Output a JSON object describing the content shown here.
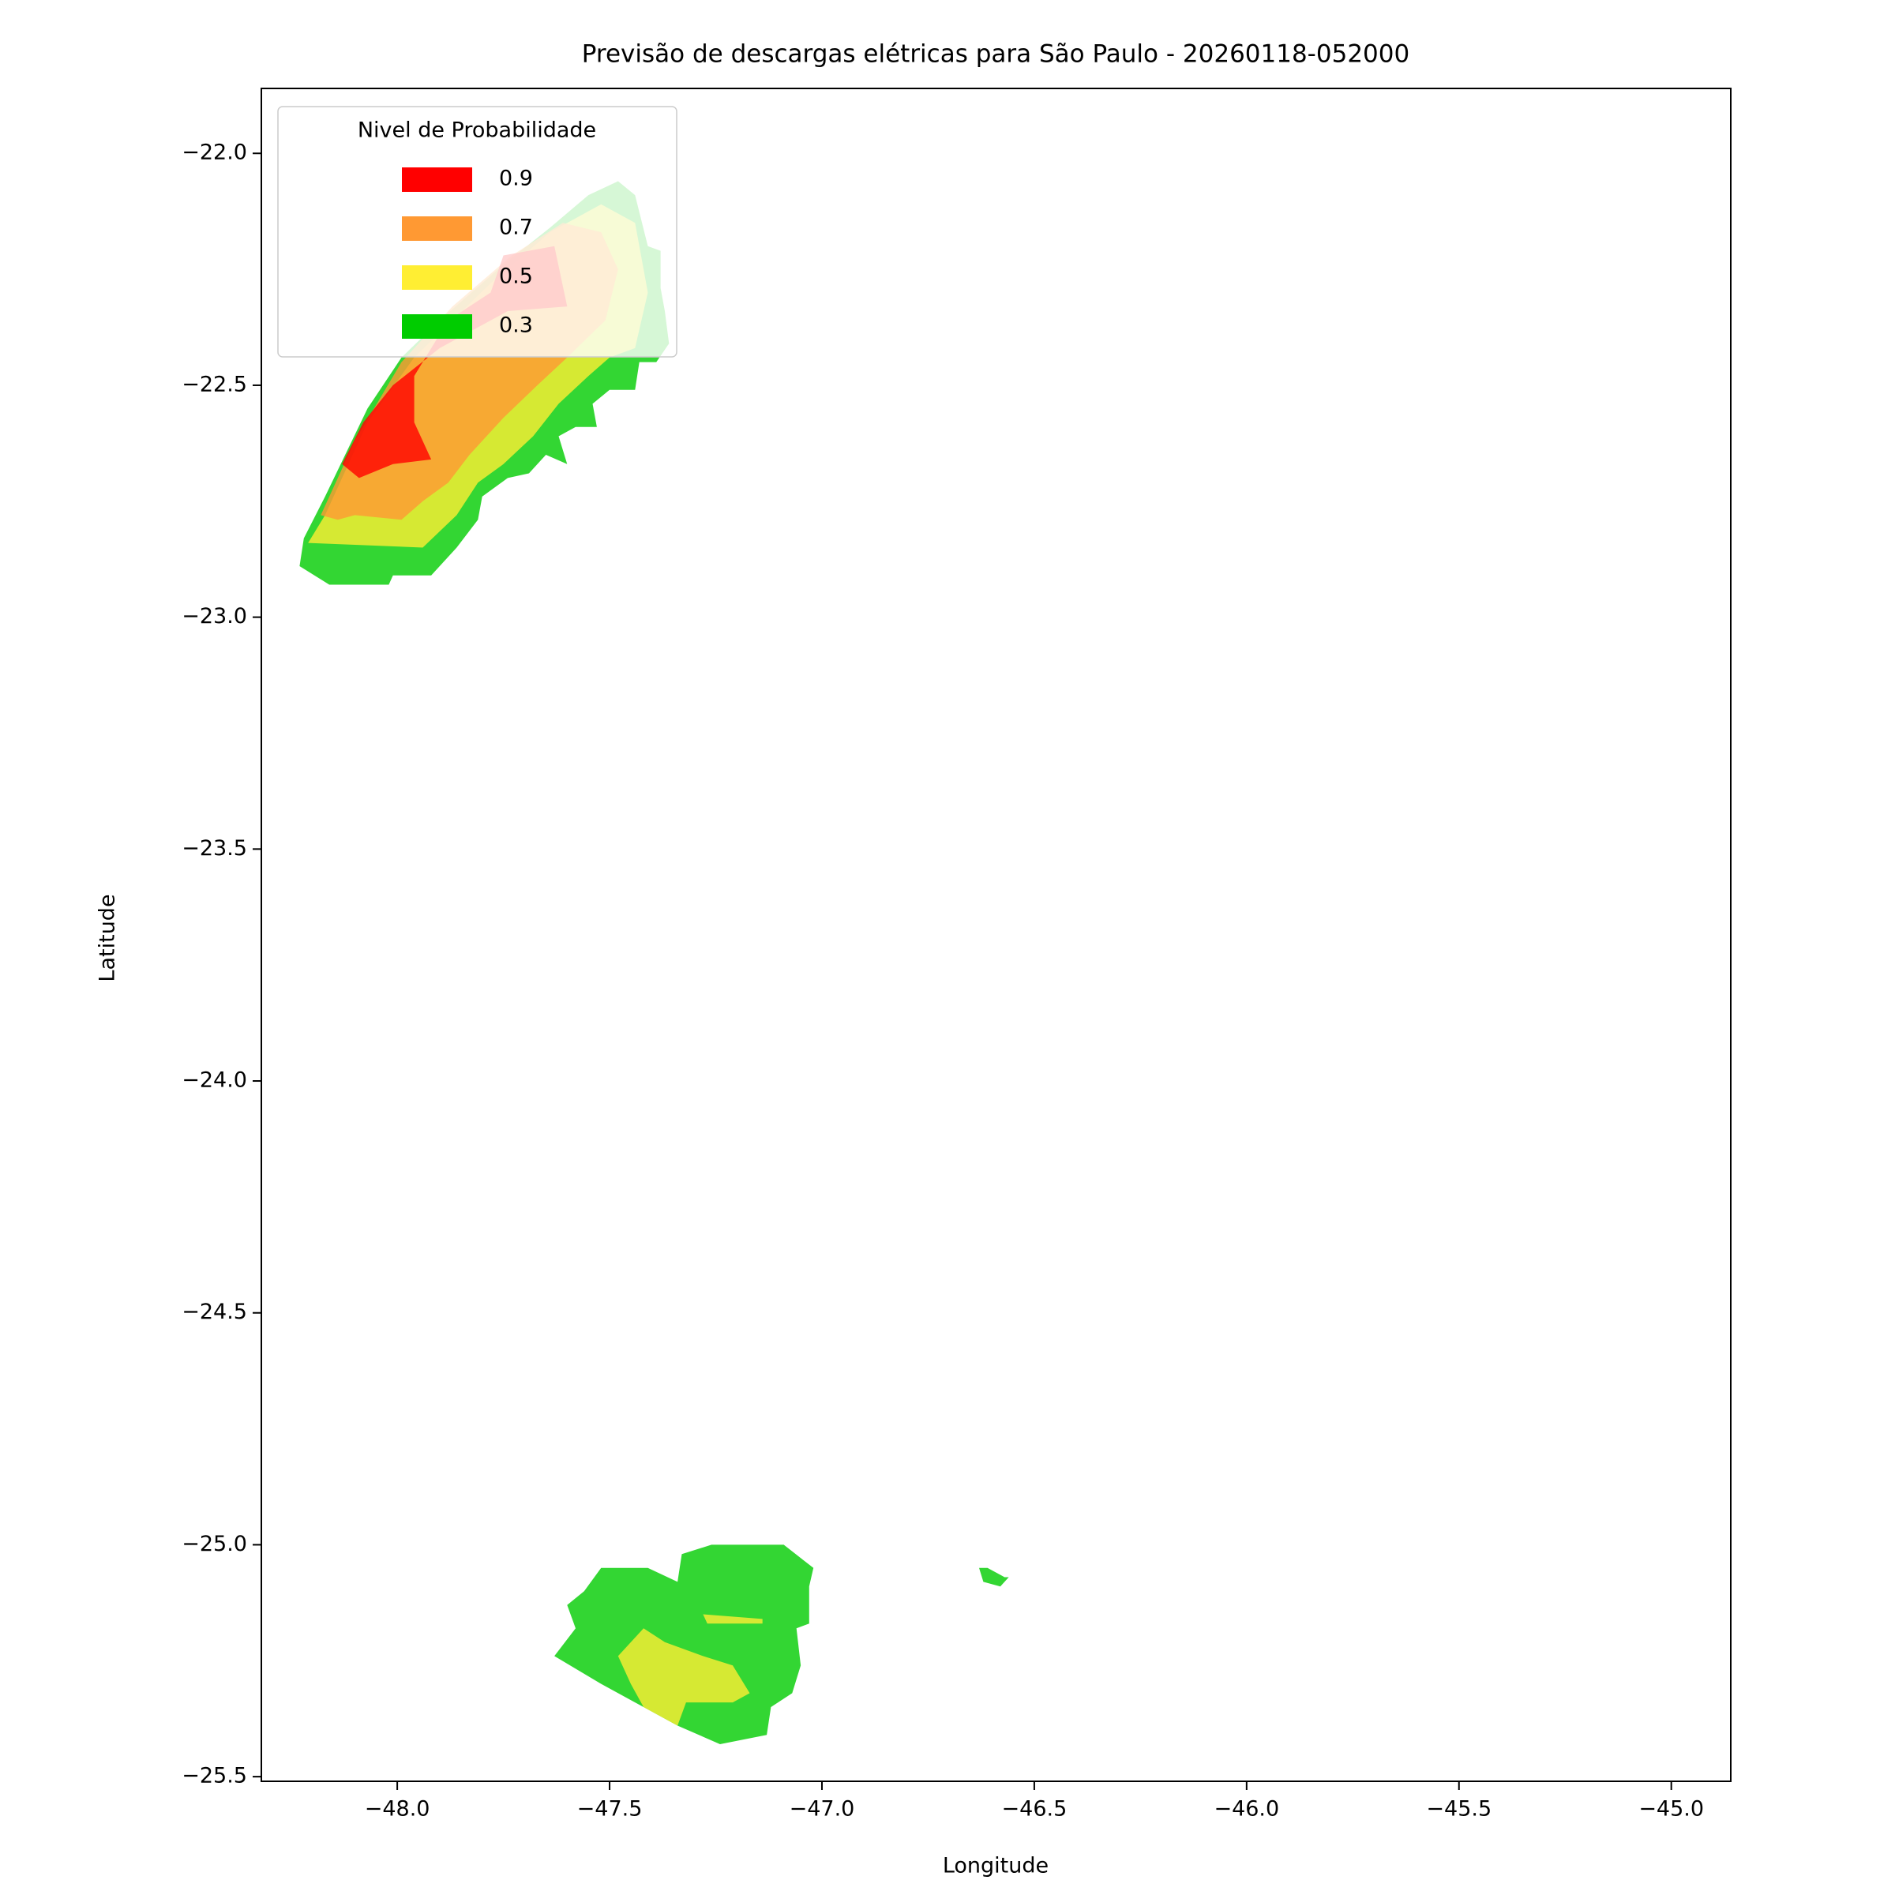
{
  "chart_data": {
    "type": "contourf",
    "title": "Previsão de descargas elétricas para São Paulo - 20260118-052000",
    "xlabel": "Longitude",
    "ylabel": "Latitude",
    "xlim": [
      -48.32,
      -44.86
    ],
    "ylim": [
      -25.51,
      -21.86
    ],
    "xticks": [
      {
        "value": -48.0,
        "label": "−48.0"
      },
      {
        "value": -47.5,
        "label": "−47.5"
      },
      {
        "value": -47.0,
        "label": "−47.0"
      },
      {
        "value": -46.5,
        "label": "−46.5"
      },
      {
        "value": -46.0,
        "label": "−46.0"
      },
      {
        "value": -45.5,
        "label": "−45.5"
      },
      {
        "value": -45.0,
        "label": "−45.0"
      }
    ],
    "yticks": [
      {
        "value": -22.0,
        "label": "−22.0"
      },
      {
        "value": -22.5,
        "label": "−22.5"
      },
      {
        "value": -23.0,
        "label": "−23.0"
      },
      {
        "value": -23.5,
        "label": "−23.5"
      },
      {
        "value": -24.0,
        "label": "−24.0"
      },
      {
        "value": -24.5,
        "label": "−24.5"
      },
      {
        "value": -25.0,
        "label": "−25.0"
      },
      {
        "value": -25.5,
        "label": "−25.5"
      }
    ],
    "alpha": 0.8,
    "legend_title": "Nivel de Probabilidade",
    "legend_position": "upper left",
    "series": [
      {
        "name": "0.9",
        "color": "#ff0000",
        "polygons": [
          {
            "lon": [
              -48.13,
              -48.09,
              -48.01,
              -47.92,
              -47.96,
              -47.96,
              -47.88,
              -47.78,
              -47.75,
              -47.63,
              -47.6,
              -47.74,
              -47.9,
              -48.01,
              -48.08
            ],
            "lat": [
              -22.67,
              -22.7,
              -22.67,
              -22.66,
              -22.58,
              -22.48,
              -22.36,
              -22.3,
              -22.22,
              -22.2,
              -22.33,
              -22.34,
              -22.42,
              -22.5,
              -22.58
            ]
          }
        ]
      },
      {
        "name": "0.7",
        "color": "#ff9933",
        "polygons": [
          {
            "lon": [
              -48.18,
              -48.14,
              -48.1,
              -47.99,
              -47.94,
              -47.88,
              -47.83,
              -47.75,
              -47.67,
              -47.6,
              -47.51,
              -47.48,
              -47.52,
              -47.61,
              -47.73,
              -47.87,
              -47.99,
              -48.1
            ],
            "lat": [
              -22.78,
              -22.79,
              -22.78,
              -22.79,
              -22.75,
              -22.71,
              -22.65,
              -22.57,
              -22.5,
              -22.44,
              -22.36,
              -22.25,
              -22.17,
              -22.15,
              -22.22,
              -22.33,
              -22.45,
              -22.62
            ]
          }
        ]
      },
      {
        "name": "0.5",
        "color": "#ffee33",
        "polygons": [
          {
            "lon": [
              -48.21,
              -47.94,
              -47.86,
              -47.81,
              -47.75,
              -47.68,
              -47.62,
              -47.55,
              -47.5,
              -47.44,
              -47.41,
              -47.44,
              -47.52,
              -47.64,
              -47.78,
              -47.96,
              -48.07,
              -48.17
            ],
            "lat": [
              -22.84,
              -22.85,
              -22.78,
              -22.71,
              -22.67,
              -22.61,
              -22.54,
              -22.48,
              -22.44,
              -22.42,
              -22.3,
              -22.15,
              -22.11,
              -22.17,
              -22.28,
              -22.44,
              -22.58,
              -22.78
            ]
          },
          {
            "lon": [
              -47.48,
              -47.42,
              -47.37,
              -47.28,
              -47.21,
              -47.17,
              -47.21,
              -47.32,
              -47.34,
              -47.42,
              -47.45
            ],
            "lat": [
              -25.24,
              -25.18,
              -25.21,
              -25.24,
              -25.26,
              -25.32,
              -25.34,
              -25.34,
              -25.39,
              -25.35,
              -25.3
            ]
          },
          {
            "lon": [
              -47.28,
              -47.14,
              -47.14,
              -47.27
            ],
            "lat": [
              -25.15,
              -25.16,
              -25.17,
              -25.17
            ]
          }
        ]
      },
      {
        "name": "0.3",
        "color": "#00cc00",
        "polygons": [
          {
            "lon": [
              -48.23,
              -48.16,
              -48.02,
              -48.01,
              -47.92,
              -47.86,
              -47.81,
              -47.8,
              -47.74,
              -47.69,
              -47.65,
              -47.6,
              -47.62,
              -47.58,
              -47.53,
              -47.54,
              -47.5,
              -47.44,
              -47.43,
              -47.39,
              -47.36,
              -47.37,
              -47.38,
              -47.38,
              -47.41,
              -47.44,
              -47.48,
              -47.55,
              -47.64,
              -47.75,
              -47.9,
              -47.99,
              -48.07,
              -48.17,
              -48.22
            ],
            "lat": [
              -22.89,
              -22.93,
              -22.93,
              -22.91,
              -22.91,
              -22.85,
              -22.79,
              -22.74,
              -22.7,
              -22.69,
              -22.65,
              -22.67,
              -22.61,
              -22.59,
              -22.59,
              -22.54,
              -22.51,
              -22.51,
              -22.45,
              -22.45,
              -22.41,
              -22.34,
              -22.29,
              -22.21,
              -22.2,
              -22.09,
              -22.06,
              -22.09,
              -22.16,
              -22.24,
              -22.36,
              -22.44,
              -22.55,
              -22.74,
              -22.83
            ]
          },
          {
            "lon": [
              -47.63,
              -47.58,
              -47.6,
              -47.56,
              -47.52,
              -47.41,
              -47.34,
              -47.33,
              -47.26,
              -47.09,
              -47.02,
              -47.03,
              -47.03,
              -47.06,
              -47.05,
              -47.07,
              -47.12,
              -47.13,
              -47.24,
              -47.34,
              -47.44,
              -47.52
            ],
            "lat": [
              -25.24,
              -25.18,
              -25.13,
              -25.1,
              -25.05,
              -25.05,
              -25.08,
              -25.02,
              -25.0,
              -25.0,
              -25.05,
              -25.09,
              -25.17,
              -25.18,
              -25.26,
              -25.32,
              -25.35,
              -25.41,
              -25.43,
              -25.39,
              -25.34,
              -25.3
            ]
          },
          {
            "lon": [
              -46.63,
              -46.61,
              -46.57,
              -46.56,
              -46.58,
              -46.62
            ],
            "lat": [
              -25.05,
              -25.05,
              -25.07,
              -25.07,
              -25.09,
              -25.08
            ]
          }
        ]
      }
    ]
  }
}
